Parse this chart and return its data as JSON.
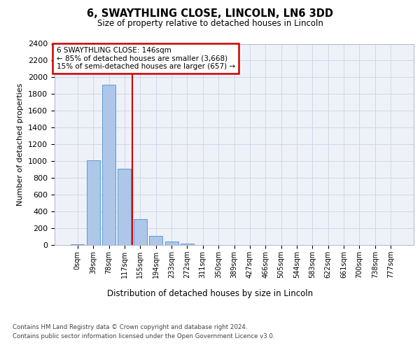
{
  "title_line1": "6, SWAYTHLING CLOSE, LINCOLN, LN6 3DD",
  "title_line2": "Size of property relative to detached houses in Lincoln",
  "xlabel": "Distribution of detached houses by size in Lincoln",
  "ylabel": "Number of detached properties",
  "categories": [
    "0sqm",
    "39sqm",
    "78sqm",
    "117sqm",
    "155sqm",
    "194sqm",
    "233sqm",
    "272sqm",
    "311sqm",
    "350sqm",
    "389sqm",
    "427sqm",
    "466sqm",
    "505sqm",
    "544sqm",
    "583sqm",
    "622sqm",
    "661sqm",
    "700sqm",
    "738sqm",
    "777sqm"
  ],
  "values": [
    10,
    1010,
    1910,
    910,
    310,
    110,
    45,
    20,
    0,
    0,
    0,
    0,
    0,
    0,
    0,
    0,
    0,
    0,
    0,
    0,
    0
  ],
  "bar_color": "#aec6e8",
  "bar_edge_color": "#5b9bd5",
  "vline_x": 3.5,
  "vline_color": "#cc0000",
  "annotation_title": "6 SWAYTHLING CLOSE: 146sqm",
  "annotation_line1": "← 85% of detached houses are smaller (3,668)",
  "annotation_line2": "15% of semi-detached houses are larger (657) →",
  "annotation_box_color": "#cc0000",
  "ylim": [
    0,
    2400
  ],
  "yticks": [
    0,
    200,
    400,
    600,
    800,
    1000,
    1200,
    1400,
    1600,
    1800,
    2000,
    2200,
    2400
  ],
  "footer_line1": "Contains HM Land Registry data © Crown copyright and database right 2024.",
  "footer_line2": "Contains public sector information licensed under the Open Government Licence v3.0.",
  "grid_color": "#d0d8e8",
  "bg_color": "#eef2f8"
}
